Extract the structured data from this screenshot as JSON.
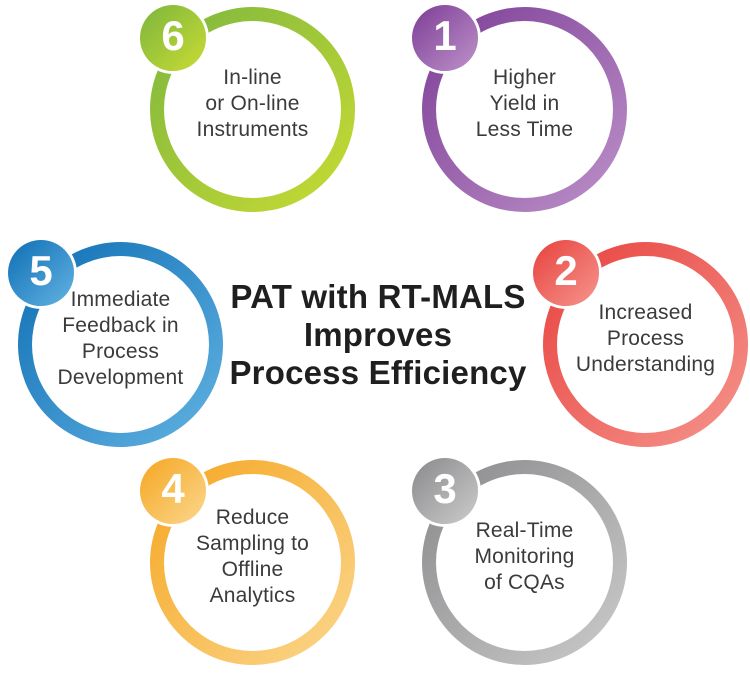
{
  "title": "PAT with RT-MALS\nImproves\nProcess Efficiency",
  "steps": [
    {
      "number": "1",
      "text": "Higher\nYield in\nLess Time",
      "color_dark": "#7d3d96",
      "color_light": "#bd92c9"
    },
    {
      "number": "2",
      "text": "Increased\nProcess\nUnderstanding",
      "color_dark": "#e8413d",
      "color_light": "#f5968e"
    },
    {
      "number": "3",
      "text": "Real-Time\nMonitoring\nof CQAs",
      "color_dark": "#89898b",
      "color_light": "#cccccd"
    },
    {
      "number": "4",
      "text": "Reduce\nSampling to\nOffline\nAnalytics",
      "color_dark": "#f5a621",
      "color_light": "#fbd78e"
    },
    {
      "number": "5",
      "text": "Immediate\nFeedback in\nProcess\nDevelopment",
      "color_dark": "#0e6eb4",
      "color_light": "#63b3e2"
    },
    {
      "number": "6",
      "text": "In-line\nor On-line\nInstruments",
      "color_dark": "#7cb53e",
      "color_light": "#c9dc33"
    }
  ]
}
